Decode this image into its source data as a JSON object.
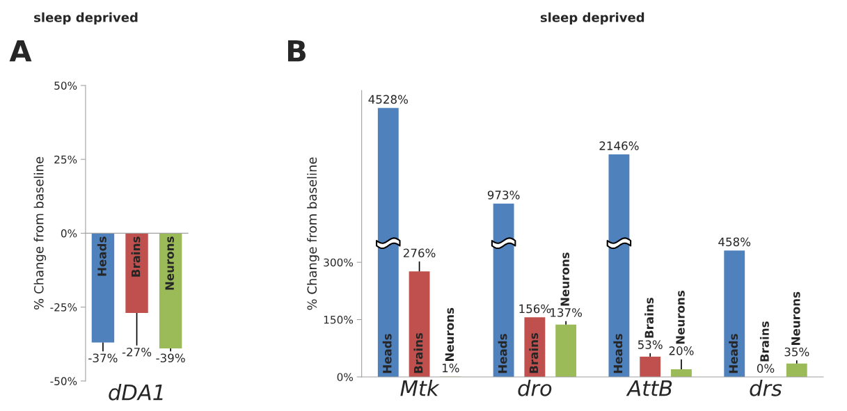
{
  "chart_data": [
    {
      "type": "bar",
      "title": "sleep deprived",
      "ylabel": "% Change from baseline",
      "annotations": [
        "A"
      ],
      "categories": [
        "dDA1"
      ],
      "ylim": [
        -50,
        50
      ],
      "yticks": [
        {
          "value": -50,
          "label": "-50%"
        },
        {
          "value": -25,
          "label": "-25%"
        },
        {
          "value": 0,
          "label": "0%"
        },
        {
          "value": 25,
          "label": "25%"
        },
        {
          "value": 50,
          "label": "50%"
        }
      ],
      "series": [
        {
          "name": "Heads",
          "color": "#4f81bd",
          "values": [
            -37
          ],
          "errors": [
            [
              -40,
              -37
            ]
          ],
          "value_labels": [
            "-37%"
          ]
        },
        {
          "name": "Brains",
          "color": "#c0504d",
          "values": [
            -27
          ],
          "errors": [
            [
              -38,
              -27
            ]
          ],
          "value_labels": [
            "-27%"
          ]
        },
        {
          "name": "Neurons",
          "color": "#9bbb59",
          "values": [
            -39
          ],
          "errors": [
            [
              -40,
              -39
            ]
          ],
          "value_labels": [
            "-39%"
          ]
        }
      ]
    },
    {
      "type": "bar",
      "title": "sleep deprived",
      "ylabel": "% Change from baseline",
      "annotations": [
        "B"
      ],
      "categories": [
        "Mtk",
        "dro",
        "AttB",
        "drs"
      ],
      "ylim": [
        0,
        750
      ],
      "yticks": [
        {
          "value": 0,
          "label": "0%"
        },
        {
          "value": 150,
          "label": "150%"
        },
        {
          "value": 300,
          "label": "300%"
        }
      ],
      "log": "y2",
      "y2lim": [
        60,
        6000
      ],
      "series": [
        {
          "name": "Heads",
          "color": "#4f81bd",
          "axis": "y2",
          "values": [
            4528,
            973,
            2146,
            458
          ],
          "value_labels": [
            "4528%",
            "973%",
            "2146%",
            "458%"
          ]
        },
        {
          "name": "Brains",
          "color": "#c0504d",
          "values": [
            276,
            156,
            53,
            0
          ],
          "errors": [
            [
              276,
              302
            ],
            null,
            [
              53,
              62
            ],
            null
          ],
          "value_labels": [
            "276%",
            "156%",
            "53%",
            "0%"
          ]
        },
        {
          "name": "Neurons",
          "color": "#9bbb59",
          "values": [
            1,
            137,
            20,
            35
          ],
          "errors": [
            null,
            [
              137,
              146
            ],
            [
              20,
              46
            ],
            [
              35,
              43
            ]
          ],
          "value_labels": [
            "1%",
            "137%",
            "20%",
            "35%"
          ]
        }
      ]
    }
  ]
}
